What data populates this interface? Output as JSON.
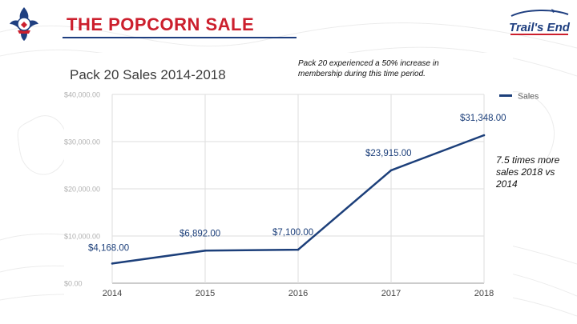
{
  "slide": {
    "title": "THE POPCORN SALE",
    "brand_logo_text": "Trail's End",
    "note": "Pack 20 experienced a 50% increase in membership during this time period.",
    "callout": "7.5 times more sales 2018 vs 2014",
    "colors": {
      "title_red": "#cc1f2d",
      "navy": "#1f3f80",
      "line": "#1c3f7a"
    }
  },
  "chart_data": {
    "type": "line",
    "title": "Pack 20 Sales 2014-2018",
    "xlabel": "",
    "ylabel": "",
    "categories": [
      "2014",
      "2015",
      "2016",
      "2017",
      "2018"
    ],
    "series": [
      {
        "name": "Sales",
        "values": [
          4168,
          6892,
          7100,
          23915,
          31348
        ]
      }
    ],
    "data_labels": [
      "$4,168.00",
      "$6,892.00",
      "$7,100.00",
      "$23,915.00",
      "$31,348.00"
    ],
    "yticks": [
      0,
      10000,
      20000,
      30000,
      40000
    ],
    "ytick_labels": [
      "$0.00",
      "$10,000.00",
      "$20,000.00",
      "$30,000.00",
      "$40,000.00"
    ],
    "ylim": [
      0,
      40000
    ],
    "grid": true,
    "legend": "top-right"
  }
}
